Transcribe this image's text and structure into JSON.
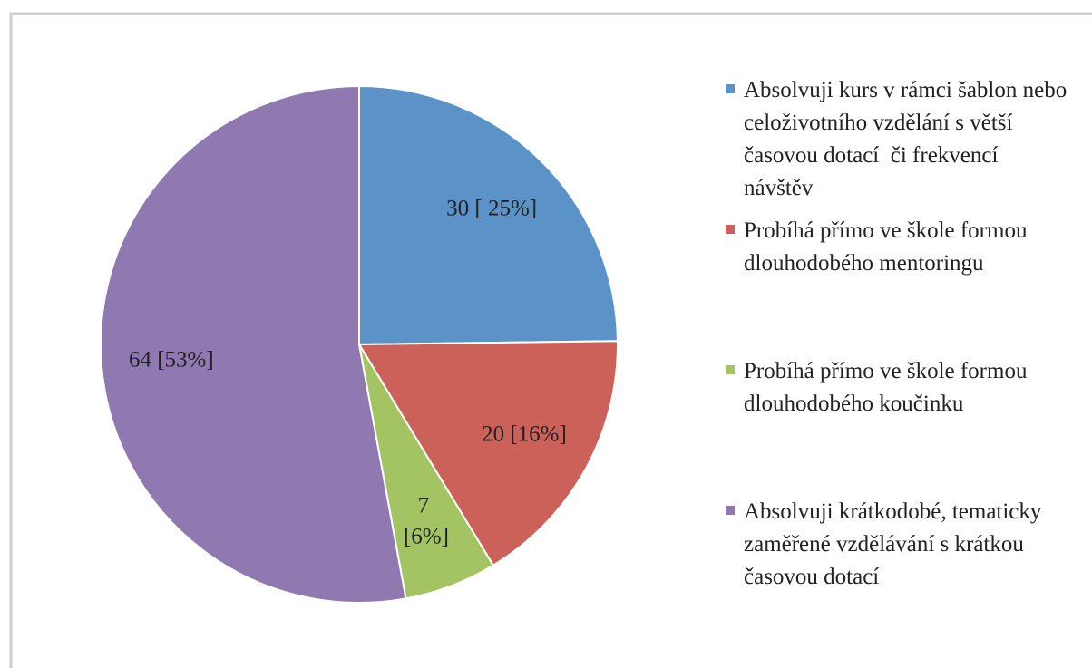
{
  "chart_data": {
    "type": "pie",
    "categories": [
      "Absolvuji kurs v rámci šablon nebo celoživotního vzdělání s větší časovou dotací  či frekvencí  návštěv",
      "Probíhá přímo ve škole formou dlouhodobého mentoringu",
      "Probíhá přímo ve škole formou dlouhodobého koučinku",
      "Absolvuji krátkodobé, tematicky zaměřené vzdělávání s krátkou časovou dotací"
    ],
    "values": [
      30,
      20,
      7,
      64
    ],
    "value_labels": [
      "30 [ 25%]",
      "20 [16%]",
      "7 [6%]",
      "64 [53%]"
    ],
    "colors": [
      "#5b93c9",
      "#cc6159",
      "#a4c463",
      "#9078b1"
    ],
    "legend": "right"
  }
}
